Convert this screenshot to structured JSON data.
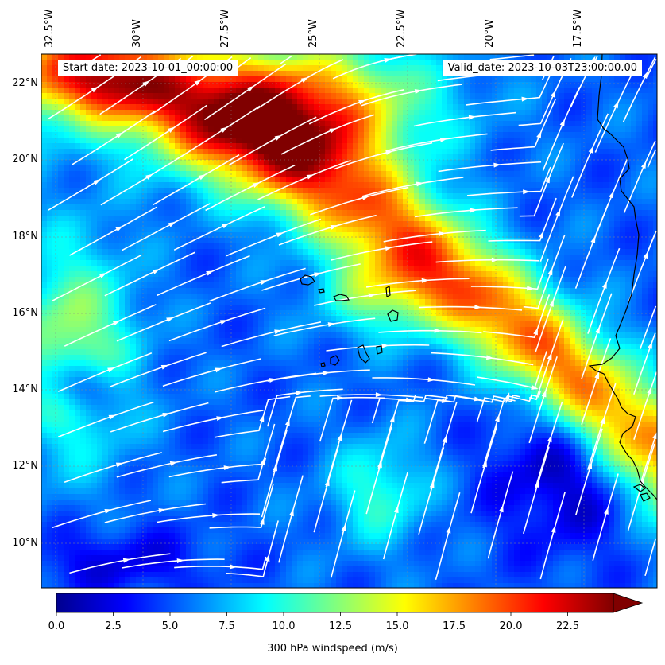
{
  "map": {
    "variable_label": "300 hPa windspeed (m/s)",
    "start_date_label": "Start date: 2023-10-01_00:00:00",
    "valid_date_label": "Valid_date: 2023-10-03T23:00:00.00",
    "lon_ticks": [
      "32.5°W",
      "30°W",
      "27.5°W",
      "25°W",
      "22.5°W",
      "20°W",
      "17.5°W"
    ],
    "lat_ticks": [
      "22°N",
      "20°N",
      "18°N",
      "16°N",
      "14°N",
      "12°N",
      "10°N"
    ],
    "extent": {
      "lon_min": -32.5,
      "lon_max": -15.0,
      "lat_min": 8.9,
      "lat_max": 22.8
    },
    "colormap": "jet",
    "streamline_color": "#ffffff",
    "coastline_color": "#000000"
  },
  "colorbar": {
    "ticks": [
      "0.0",
      "2.5",
      "5.0",
      "7.5",
      "10.0",
      "12.5",
      "15.0",
      "17.5",
      "20.0",
      "22.5"
    ],
    "min": 0,
    "max": 25,
    "extend": "max"
  }
}
